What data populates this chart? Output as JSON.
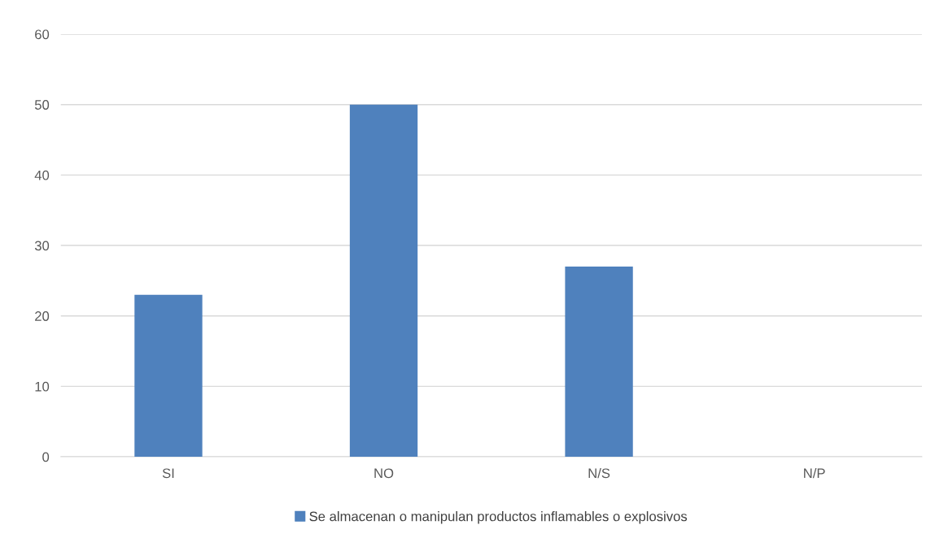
{
  "chart_data": {
    "type": "bar",
    "categories": [
      "SI",
      "NO",
      "N/S",
      "N/P"
    ],
    "series": [
      {
        "name": "Se almacenan o manipulan productos inflamables o explosivos",
        "color": "#4f81bd",
        "values": [
          23,
          50,
          27,
          0
        ]
      }
    ],
    "ylim": [
      0,
      60
    ],
    "yticks": [
      0,
      10,
      20,
      30,
      40,
      50,
      60
    ],
    "grid": "y",
    "legend": "bottom"
  }
}
